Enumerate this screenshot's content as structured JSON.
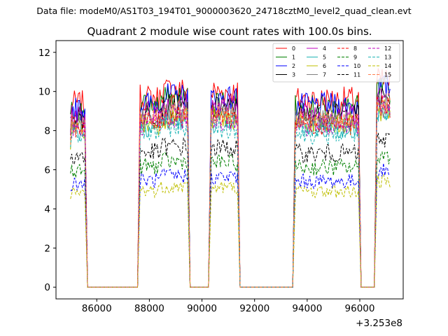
{
  "suptitle": "Data file: modeM0/AS1T03_194T01_9000003620_24718cztM0_level2_quad_clean.evt",
  "chart_data": {
    "type": "line",
    "title": "Quadrant 2 module wise count rates with 100.0s bins.",
    "xlabel": "",
    "ylabel": "",
    "x_offset_label": "+3.253e8",
    "xlim": [
      84450,
      97650
    ],
    "ylim": [
      -0.6,
      12.6
    ],
    "xticks": [
      86000,
      88000,
      90000,
      92000,
      94000,
      96000
    ],
    "yticks": [
      0,
      2,
      4,
      6,
      8,
      10,
      12
    ],
    "legend_position": "top-right",
    "segments": [
      [
        85000,
        85550
      ],
      [
        87650,
        89450
      ],
      [
        90350,
        91350
      ],
      [
        93550,
        95950
      ],
      [
        96650,
        97150
      ]
    ],
    "series": [
      {
        "name": "0",
        "color": "#ff0000",
        "dashed": false,
        "level": 9.4
      },
      {
        "name": "1",
        "color": "#008000",
        "dashed": false,
        "level": 9.0
      },
      {
        "name": "2",
        "color": "#0000ff",
        "dashed": false,
        "level": 9.1
      },
      {
        "name": "3",
        "color": "#000000",
        "dashed": false,
        "level": 8.6
      },
      {
        "name": "4",
        "color": "#bf00bf",
        "dashed": false,
        "level": 8.7
      },
      {
        "name": "5",
        "color": "#1fb5b5",
        "dashed": false,
        "level": 8.0
      },
      {
        "name": "6",
        "color": "#bfbf00",
        "dashed": false,
        "level": 8.1
      },
      {
        "name": "7",
        "color": "#808080",
        "dashed": false,
        "level": 8.3
      },
      {
        "name": "8",
        "color": "#ff0000",
        "dashed": true,
        "level": 8.2
      },
      {
        "name": "9",
        "color": "#008000",
        "dashed": true,
        "level": 6.0
      },
      {
        "name": "10",
        "color": "#0000ff",
        "dashed": true,
        "level": 5.3
      },
      {
        "name": "11",
        "color": "#000000",
        "dashed": true,
        "level": 6.7
      },
      {
        "name": "12",
        "color": "#bf00bf",
        "dashed": true,
        "level": 8.1
      },
      {
        "name": "13",
        "color": "#1fb5b5",
        "dashed": true,
        "level": 7.7
      },
      {
        "name": "14",
        "color": "#bfbf00",
        "dashed": true,
        "level": 4.8
      },
      {
        "name": "15",
        "color": "#ff7f50",
        "dashed": true,
        "level": 8.4
      }
    ]
  }
}
